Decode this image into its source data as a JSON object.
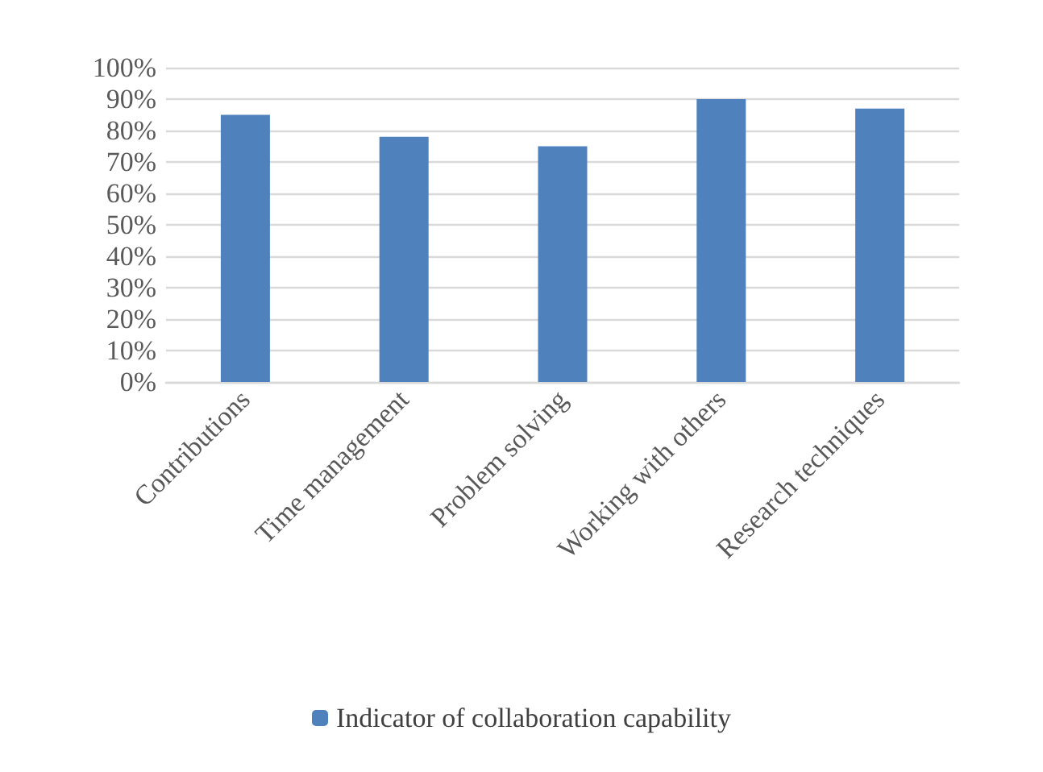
{
  "chart_data": {
    "type": "bar",
    "categories": [
      "Contributions",
      "Time management",
      "Problem solving",
      "Working with others",
      "Research techniques"
    ],
    "series": [
      {
        "name": "Indicator of collaboration capability",
        "color": "#4f81bd",
        "values": [
          85,
          78,
          75,
          90,
          87
        ]
      }
    ],
    "ylim": [
      0,
      100
    ],
    "yticks": [
      {
        "value": 0,
        "label": "0%"
      },
      {
        "value": 10,
        "label": "10%"
      },
      {
        "value": 20,
        "label": "20%"
      },
      {
        "value": 30,
        "label": "30%"
      },
      {
        "value": 40,
        "label": "40%"
      },
      {
        "value": 50,
        "label": "50%"
      },
      {
        "value": 60,
        "label": "60%"
      },
      {
        "value": 70,
        "label": "70%"
      },
      {
        "value": 80,
        "label": "80%"
      },
      {
        "value": 90,
        "label": "90%"
      },
      {
        "value": 100,
        "label": "100%"
      }
    ],
    "grid": "y",
    "legend": "bottom"
  }
}
